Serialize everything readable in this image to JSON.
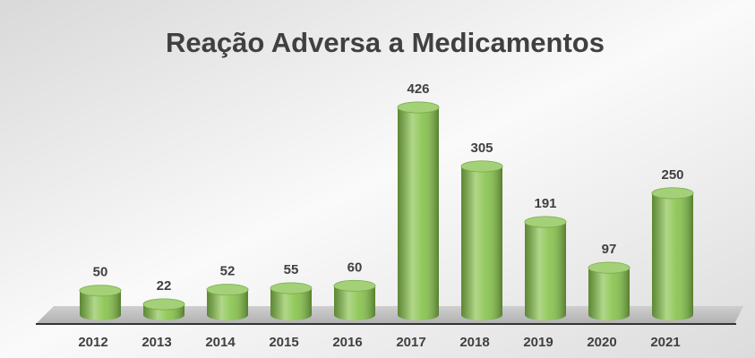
{
  "chart_data": {
    "type": "bar",
    "title": "Reação Adversa a Medicamentos",
    "categories": [
      "2012",
      "2013",
      "2014",
      "2015",
      "2016",
      "2017",
      "2018",
      "2019",
      "2020",
      "2021"
    ],
    "values": [
      50,
      22,
      52,
      55,
      60,
      426,
      305,
      191,
      97,
      250
    ],
    "color": "#86c24a"
  }
}
